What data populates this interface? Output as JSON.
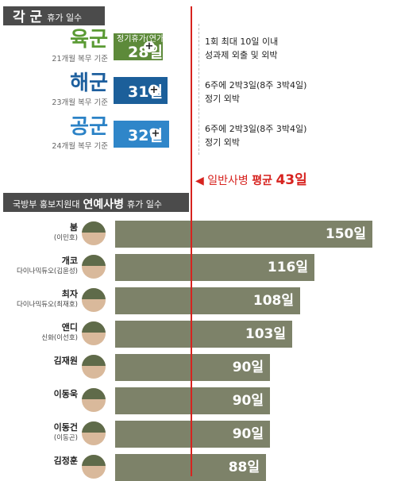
{
  "section1": {
    "title_big": "각 군",
    "title_small": "휴가 일수"
  },
  "branches": [
    {
      "name": "육군",
      "sub": "21개월 복무 기준",
      "days": 28,
      "unit": "일",
      "tag": "정기휴가(연가)",
      "color": "#5d8a3a",
      "name_color": "#5a9a33",
      "desc": [
        "1회 최대 10일 이내",
        "성과제 외출 및 외박"
      ]
    },
    {
      "name": "해군",
      "sub": "23개월 복무 기준",
      "days": 31,
      "unit": "일",
      "tag": "",
      "color": "#1c5f9a",
      "name_color": "#1d5f9e",
      "desc": [
        "6주에 2박3일(8주 3박4일)",
        "정기 외박"
      ]
    },
    {
      "name": "공군",
      "sub": "24개월 복무 기준",
      "days": 32,
      "unit": "일",
      "tag": "",
      "color": "#2f86c9",
      "name_color": "#2b82c6",
      "desc": [
        "6주에 2박3일(8주 3박4일)",
        "정기 외박"
      ]
    }
  ],
  "avg": {
    "label": "일반사병",
    "avg_word": "평균",
    "value": "43일"
  },
  "section2": {
    "prefix": "국방부 홍보지원대",
    "title_big": "연예사병",
    "suffix": "휴가 일수"
  },
  "chart_data": {
    "type": "bar",
    "orientation": "horizontal",
    "categories": [
      "붐",
      "개코",
      "최자",
      "앤디",
      "김재원",
      "이동욱",
      "이동건",
      "김정훈"
    ],
    "subtitles": [
      "(이민호)",
      "다이나믹듀오(김윤성)",
      "다이나믹듀오(최재호)",
      "신화(이선호)",
      "",
      "",
      "(이동곤)",
      ""
    ],
    "values": [
      150,
      116,
      108,
      103,
      90,
      90,
      90,
      88
    ],
    "value_suffix": "일",
    "reference_line": 43,
    "xlim": [
      0,
      155
    ],
    "bar_color": "#7d8269"
  },
  "colors": {
    "header_bg": "#4b4b4b",
    "red": "#d7231f"
  }
}
